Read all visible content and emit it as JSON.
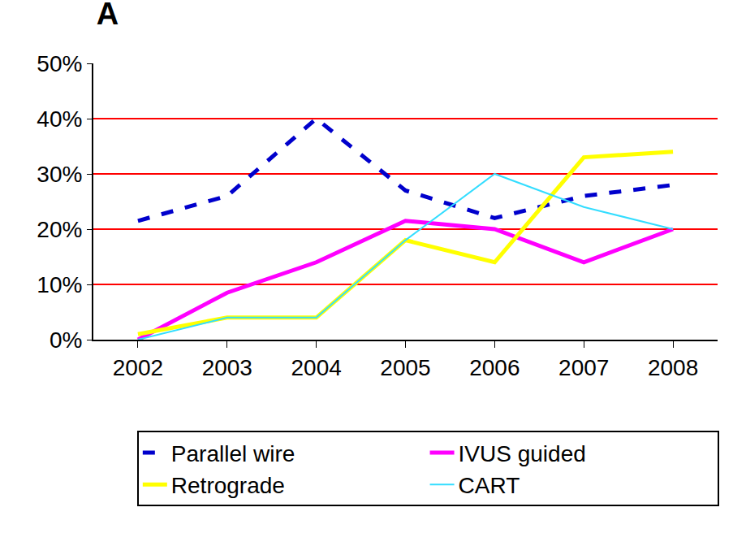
{
  "chart_data": {
    "type": "line",
    "title": "A",
    "categories": [
      "2002",
      "2003",
      "2004",
      "2005",
      "2006",
      "2007",
      "2008"
    ],
    "series": [
      {
        "name": "Parallel wire",
        "color": "#0000cc",
        "line_style": "dashed",
        "values": [
          21.5,
          26,
          40,
          27,
          22,
          26,
          28
        ]
      },
      {
        "name": "IVUS guided",
        "color": "#ff00ff",
        "line_style": "solid",
        "values": [
          0,
          8.5,
          14,
          21.5,
          20,
          14,
          20
        ]
      },
      {
        "name": "Retrograde",
        "color": "#ffff00",
        "line_style": "solid",
        "values": [
          1,
          4,
          4,
          18,
          14,
          33,
          34
        ]
      },
      {
        "name": "CART",
        "color": "#33ddff",
        "line_style": "solid",
        "values": [
          0,
          4,
          4,
          18,
          30,
          24,
          20
        ]
      }
    ],
    "ylim": [
      0,
      50
    ],
    "yticks": [
      {
        "value": 0,
        "label": "0%"
      },
      {
        "value": 10,
        "label": "10%"
      },
      {
        "value": 20,
        "label": "20%"
      },
      {
        "value": 30,
        "label": "30%"
      },
      {
        "value": 40,
        "label": "40%"
      },
      {
        "value": 50,
        "label": "50%"
      }
    ],
    "grid": true,
    "legend": "bottom"
  }
}
